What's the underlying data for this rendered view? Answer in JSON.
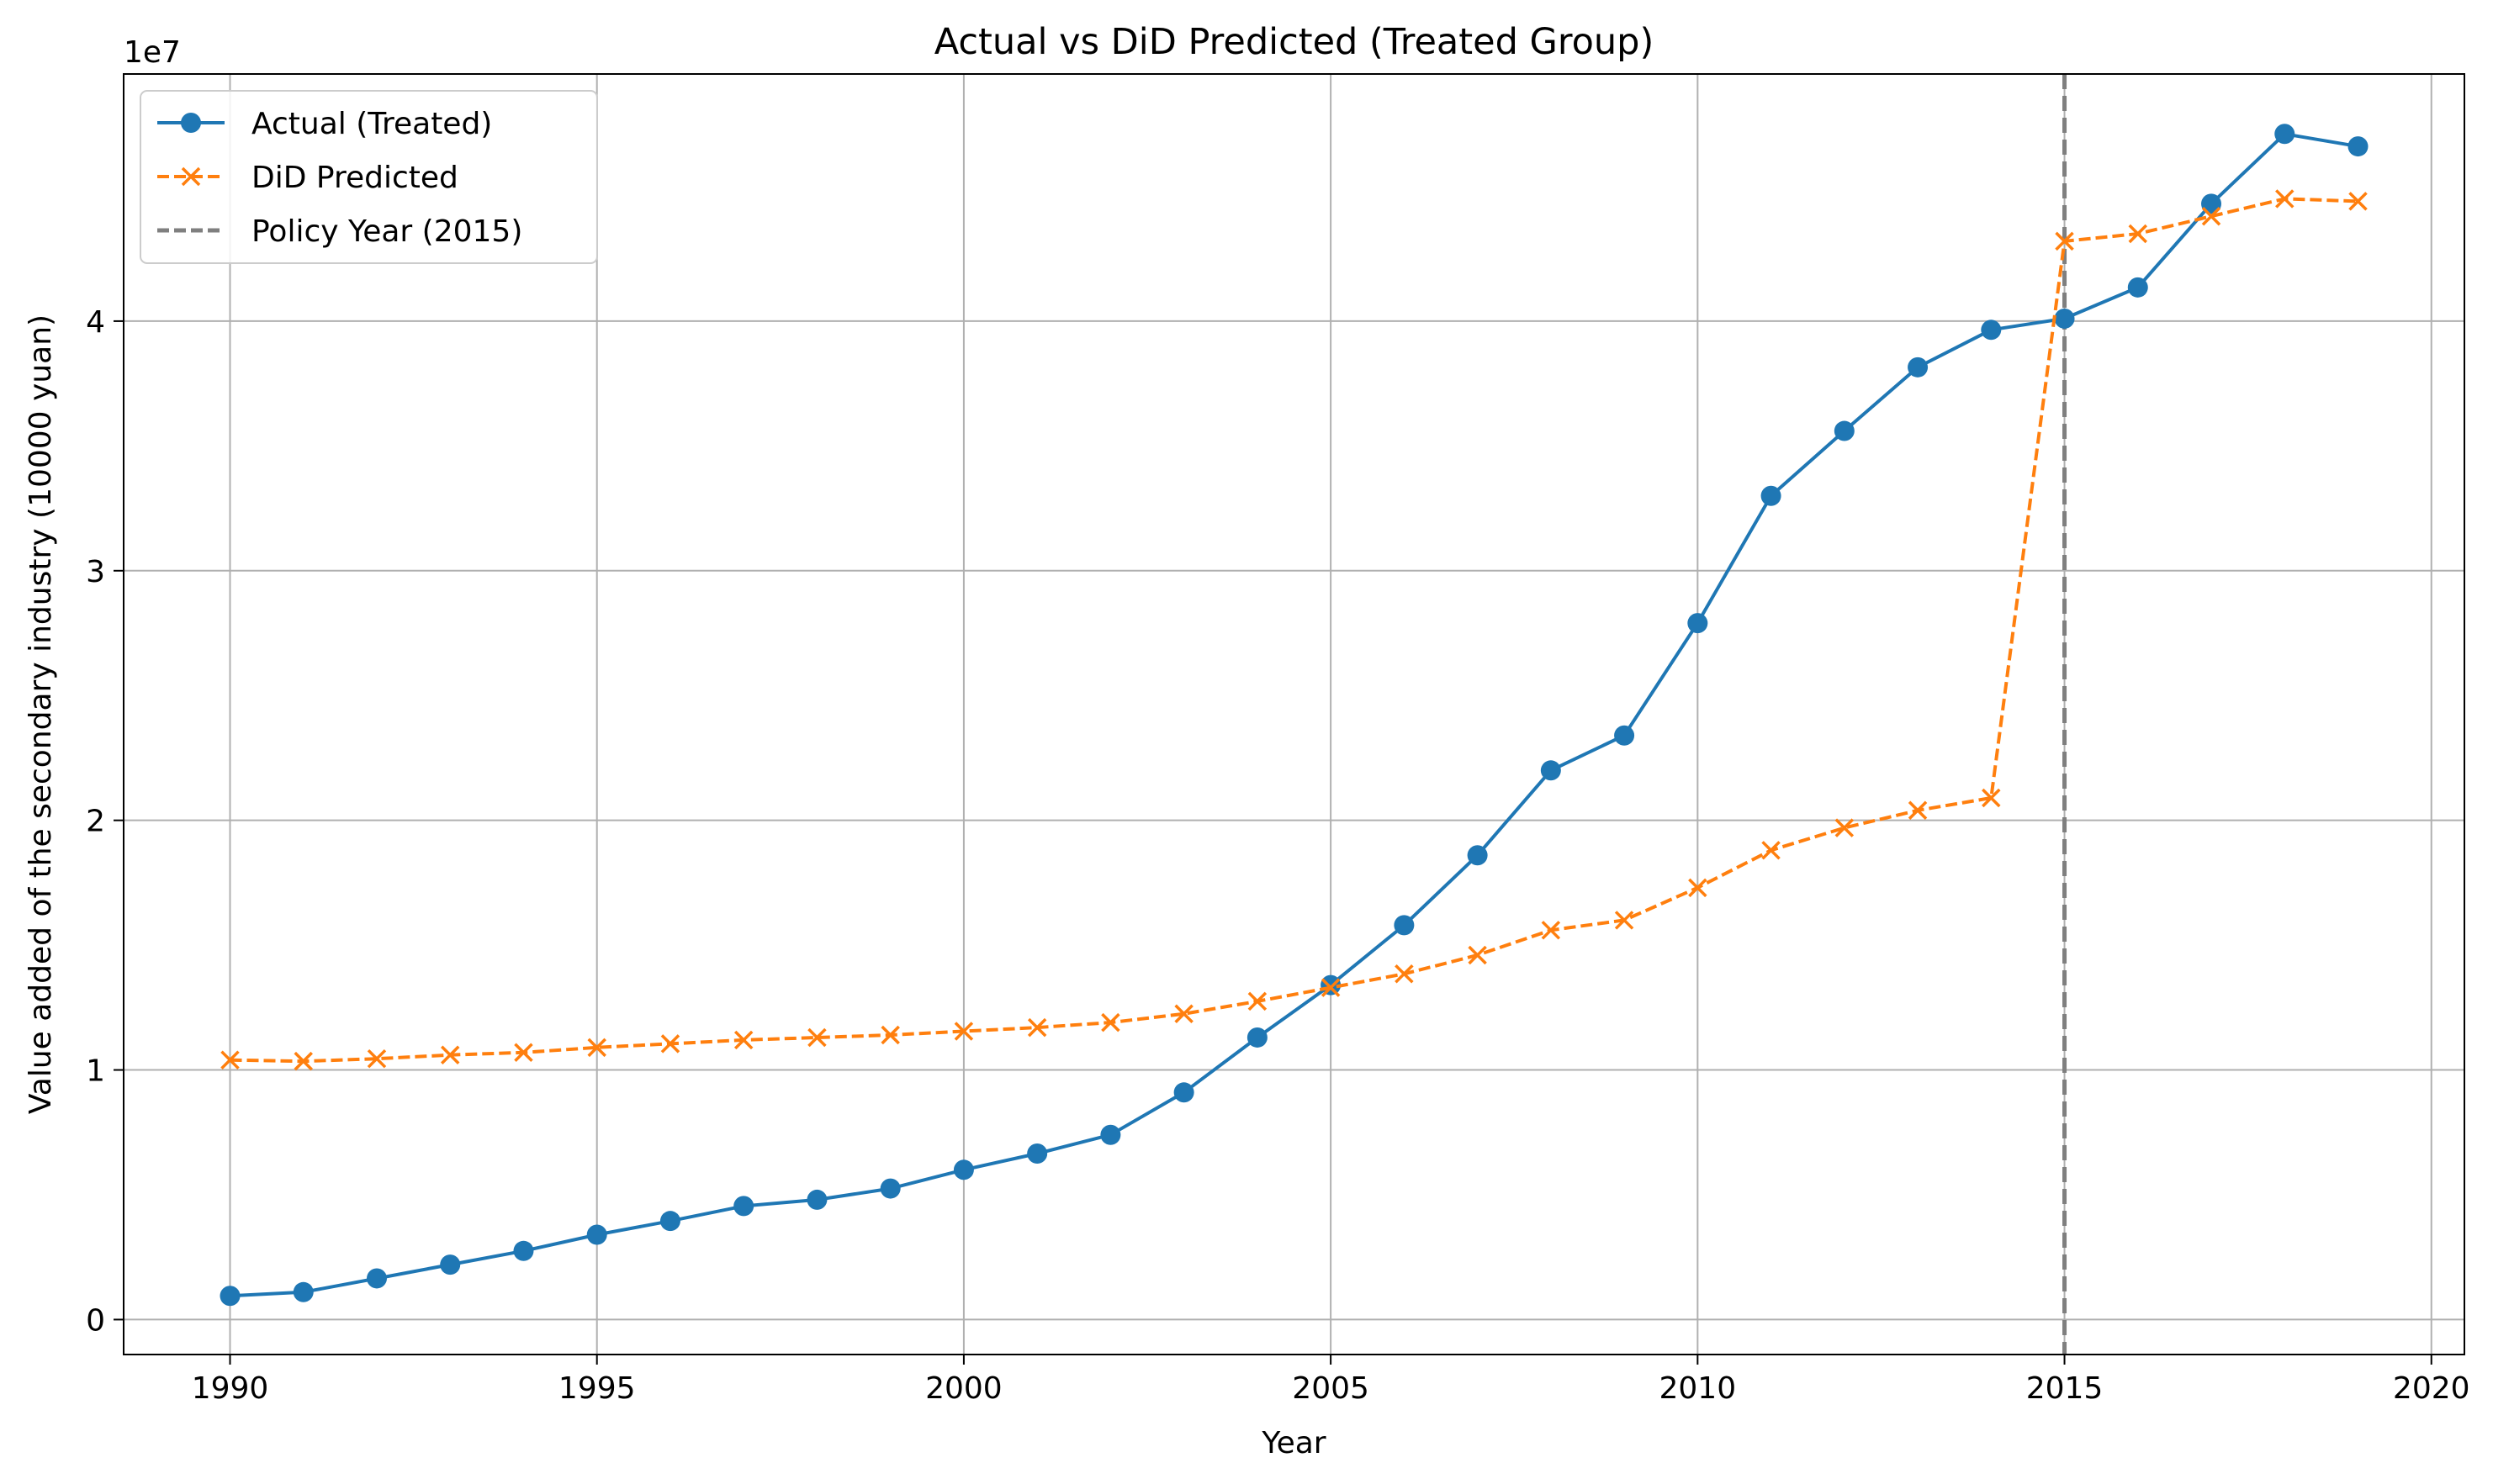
{
  "chart_data": {
    "type": "line",
    "title": "Actual vs DiD Predicted (Treated Group)",
    "xlabel": "Year",
    "ylabel": "Value added of the secondary industry (10000 yuan)",
    "y_offset_label": "1e7",
    "xlim": [
      1988.55,
      2020.45
    ],
    "ylim": [
      -0.14,
      4.99
    ],
    "y_scale_note": "values in units of 1e7",
    "grid": true,
    "legend_position": "upper left",
    "x_ticks": [
      1990,
      1995,
      2000,
      2005,
      2010,
      2015,
      2020
    ],
    "x_tick_labels": [
      "1990",
      "1995",
      "2000",
      "2005",
      "2010",
      "2015",
      "2020"
    ],
    "y_ticks": [
      0,
      1,
      2,
      3,
      4
    ],
    "y_tick_labels": [
      "0",
      "1",
      "2",
      "3",
      "4"
    ],
    "x": [
      1990,
      1991,
      1992,
      1993,
      1994,
      1995,
      1996,
      1997,
      1998,
      1999,
      2000,
      2001,
      2002,
      2003,
      2004,
      2005,
      2006,
      2007,
      2008,
      2009,
      2010,
      2011,
      2012,
      2013,
      2014,
      2015,
      2016,
      2017,
      2018,
      2019
    ],
    "series": [
      {
        "name": "Actual (Treated)",
        "color": "#1f77b4",
        "line_style": "solid",
        "marker": "circle",
        "values": [
          0.095,
          0.11,
          0.165,
          0.22,
          0.275,
          0.34,
          0.395,
          0.455,
          0.48,
          0.525,
          0.6,
          0.665,
          0.74,
          0.91,
          1.13,
          1.34,
          1.58,
          1.86,
          2.2,
          2.34,
          2.79,
          3.3,
          3.56,
          3.815,
          3.965,
          4.01,
          4.135,
          4.47,
          4.75,
          4.7
        ]
      },
      {
        "name": "DiD Predicted",
        "color": "#ff7f0e",
        "line_style": "dashed",
        "marker": "x",
        "values": [
          1.04,
          1.035,
          1.045,
          1.06,
          1.07,
          1.09,
          1.105,
          1.12,
          1.13,
          1.14,
          1.155,
          1.17,
          1.19,
          1.225,
          1.275,
          1.33,
          1.385,
          1.46,
          1.56,
          1.6,
          1.73,
          1.88,
          1.97,
          2.04,
          2.09,
          4.32,
          4.35,
          4.42,
          4.49,
          4.48
        ]
      }
    ],
    "reference_lines": [
      {
        "name": "Policy Year (2015)",
        "x": 2015,
        "color": "#7f7f7f",
        "line_style": "dashed"
      }
    ]
  }
}
